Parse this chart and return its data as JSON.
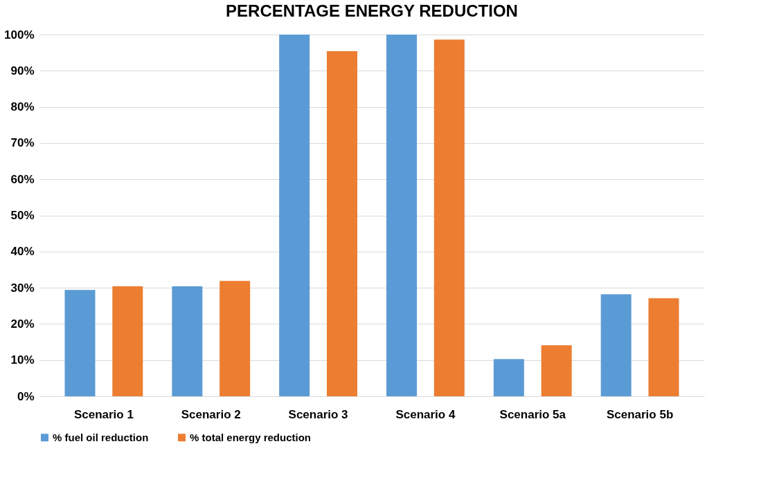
{
  "chart_data": {
    "type": "bar",
    "title": "PERCENTAGE ENERGY REDUCTION",
    "categories": [
      "Scenario 1",
      "Scenario 2",
      "Scenario 3",
      "Scenario 4",
      "Scenario 5a",
      "Scenario 5b"
    ],
    "series": [
      {
        "name": "% fuel oil reduction",
        "color": "#5b9bd5",
        "values": [
          29.4,
          30.4,
          100,
          100,
          10.3,
          28.2
        ]
      },
      {
        "name": "% total energy reduction",
        "color": "#ed7d31",
        "values": [
          30.4,
          31.9,
          95.4,
          98.6,
          14.1,
          27.1
        ]
      }
    ],
    "ylim": [
      0,
      100
    ],
    "yticks": [
      {
        "value": 0,
        "label": "0%"
      },
      {
        "value": 10,
        "label": "10%"
      },
      {
        "value": 20,
        "label": "20%"
      },
      {
        "value": 30,
        "label": "30%"
      },
      {
        "value": 40,
        "label": "40%"
      },
      {
        "value": 50,
        "label": "50%"
      },
      {
        "value": 60,
        "label": "60%"
      },
      {
        "value": 70,
        "label": "70%"
      },
      {
        "value": 80,
        "label": "80%"
      },
      {
        "value": 90,
        "label": "90%"
      },
      {
        "value": 100,
        "label": "100%"
      }
    ],
    "grid": "y",
    "legend": "bottom"
  }
}
